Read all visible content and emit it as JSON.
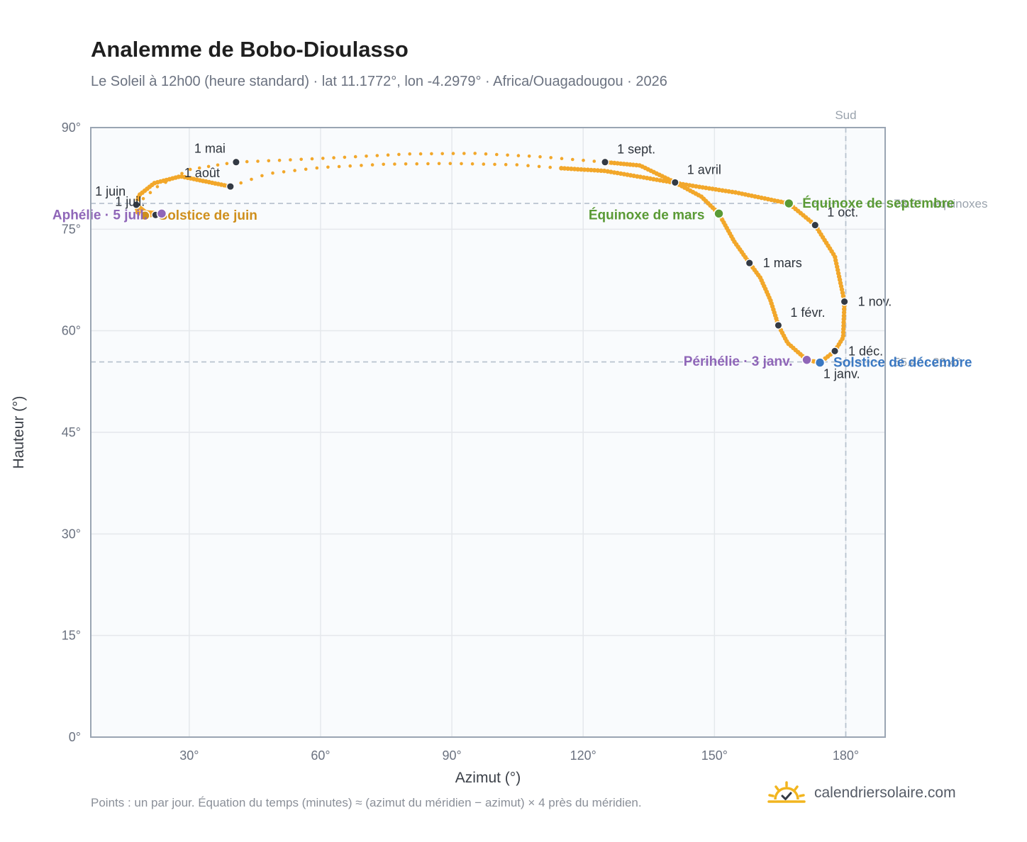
{
  "title": "Analemme de Bobo-Dioulasso",
  "subtitle": "Le Soleil à 12h00 (heure standard) · lat 11.1772°, lon -4.2979° · Africa/Ouagadougou · 2026",
  "footnote": "Points : un par jour. Équation du temps (minutes) ≈ (azimut du méridien − azimut) × 4 près du méridien.",
  "brand": {
    "name": "calendriersolaire.com",
    "icon": "sun-logo-icon"
  },
  "colors": {
    "curve": "#f2a72a",
    "month_marker": "#333a44",
    "equinox": "#5a9a35",
    "june_solstice": "#cf8f1c",
    "december_solstice": "#3a78c2",
    "apsis": "#8f66b8",
    "grid": "#e5e8ec",
    "reference_line": "#b9c3cf",
    "plot_background": "#f9fbfd",
    "frame": "#9aa5b3"
  },
  "chart_data": {
    "type": "scatter",
    "title": "Analemme de Bobo-Dioulasso",
    "xlabel": "Azimut (°)",
    "ylabel": "Hauteur (°)",
    "xlim": [
      7.5,
      189
    ],
    "ylim": [
      0,
      90
    ],
    "xticks": [
      {
        "value": 30,
        "label": "30°"
      },
      {
        "value": 60,
        "label": "60°"
      },
      {
        "value": 90,
        "label": "90°"
      },
      {
        "value": 120,
        "label": "120°"
      },
      {
        "value": 150,
        "label": "150°"
      },
      {
        "value": 180,
        "label": "180°"
      }
    ],
    "yticks": [
      {
        "value": 0,
        "label": "0°"
      },
      {
        "value": 15,
        "label": "15°"
      },
      {
        "value": 30,
        "label": "30°"
      },
      {
        "value": 45,
        "label": "45°"
      },
      {
        "value": 60,
        "label": "60°"
      },
      {
        "value": 75,
        "label": "75°"
      },
      {
        "value": 90,
        "label": "90°"
      }
    ],
    "grid": true,
    "south_line": {
      "azimuth": 180,
      "label": "Sud"
    },
    "reference_lines": [
      {
        "altitude": 78.8,
        "label": "78.8° · équinoxes"
      },
      {
        "altitude": 55.4,
        "label": "55.4° · 23.4°"
      }
    ],
    "series": [
      {
        "type": "daily_points",
        "segments": [
          {
            "points": [
              [
                174.1,
                55.3
              ],
              [
                171.1,
                55.7
              ],
              [
                166.7,
                58.2
              ],
              [
                164.6,
                60.8
              ],
              [
                162.8,
                64.5
              ],
              [
                160.5,
                67.8
              ],
              [
                158.0,
                70.0
              ],
              [
                154.5,
                73.2
              ],
              [
                151.0,
                77.3
              ],
              [
                147.0,
                79.8
              ],
              [
                141.0,
                81.9
              ],
              [
                133.0,
                84.4
              ],
              [
                125.0,
                84.9
              ]
            ],
            "count": 100,
            "dotted": false
          },
          {
            "points": [
              [
                125.0,
                84.9
              ],
              [
                110.0,
                85.7
              ],
              [
                95.0,
                86.2
              ],
              [
                80.0,
                86.1
              ],
              [
                65.0,
                85.6
              ],
              [
                52.0,
                85.2
              ],
              [
                40.7,
                84.9
              ]
            ],
            "count": 34,
            "dotted": true
          },
          {
            "points": [
              [
                40.7,
                84.9
              ],
              [
                30.0,
                83.8
              ],
              [
                22.5,
                81.2
              ],
              [
                17.9,
                78.6
              ]
            ],
            "count": 12,
            "dotted": true
          },
          {
            "points": [
              [
                17.9,
                78.6
              ],
              [
                20.0,
                77.5
              ],
              [
                23.7,
                77.3
              ]
            ],
            "count": 18,
            "dotted": false
          },
          {
            "points": [
              [
                23.7,
                77.3
              ],
              [
                22.3,
                77.1
              ],
              [
                19.9,
                77.0
              ],
              [
                18.2,
                77.5
              ],
              [
                17.9,
                78.6
              ],
              [
                18.5,
                80.0
              ],
              [
                22.0,
                81.8
              ],
              [
                28.0,
                82.8
              ],
              [
                39.4,
                81.3
              ]
            ],
            "count": 45,
            "dotted": false
          },
          {
            "points": [
              [
                39.4,
                81.3
              ],
              [
                48.0,
                83.2
              ],
              [
                60.0,
                84.1
              ],
              [
                75.0,
                84.6
              ],
              [
                90.0,
                84.7
              ],
              [
                105.0,
                84.5
              ],
              [
                115.0,
                84.0
              ]
            ],
            "count": 30,
            "dotted": true
          },
          {
            "points": [
              [
                115.0,
                84.0
              ],
              [
                125.0,
                83.6
              ],
              [
                135.0,
                82.5
              ],
              [
                145.0,
                81.4
              ],
              [
                155.0,
                80.4
              ],
              [
                167.0,
                78.8
              ],
              [
                173.0,
                75.6
              ],
              [
                177.5,
                71.0
              ],
              [
                179.7,
                64.3
              ],
              [
                179.4,
                59.0
              ],
              [
                177.5,
                57.0
              ],
              [
                174.5,
                55.5
              ],
              [
                174.1,
                55.3
              ]
            ],
            "count": 126,
            "dotted": false
          }
        ]
      }
    ],
    "month_markers": [
      {
        "label": "1 janv.",
        "azimuth": 174.4,
        "altitude": 55.3,
        "label_pos": "below-right"
      },
      {
        "label": "1 févr.",
        "azimuth": 164.6,
        "altitude": 60.8,
        "label_pos": "above-right"
      },
      {
        "label": "1 mars",
        "azimuth": 158.0,
        "altitude": 70.0,
        "label_pos": "right"
      },
      {
        "label": "1 avril",
        "azimuth": 141.0,
        "altitude": 81.9,
        "label_pos": "above-right"
      },
      {
        "label": "1 mai",
        "azimuth": 40.7,
        "altitude": 84.9,
        "label_pos": "above-left"
      },
      {
        "label": "1 juin",
        "azimuth": 17.9,
        "altitude": 78.6,
        "label_pos": "above-left"
      },
      {
        "label": "1 juil.",
        "azimuth": 22.3,
        "altitude": 77.1,
        "label_pos": "above-left"
      },
      {
        "label": "1 août",
        "azimuth": 39.4,
        "altitude": 81.3,
        "label_pos": "above-left"
      },
      {
        "label": "1 sept.",
        "azimuth": 125.0,
        "altitude": 84.9,
        "label_pos": "above-right"
      },
      {
        "label": "1 oct.",
        "azimuth": 173.0,
        "altitude": 75.6,
        "label_pos": "above-right"
      },
      {
        "label": "1 nov.",
        "azimuth": 179.7,
        "altitude": 64.3,
        "label_pos": "right"
      },
      {
        "label": "1 déc.",
        "azimuth": 177.5,
        "altitude": 57.0,
        "label_pos": "right"
      }
    ],
    "key_events": [
      {
        "label": "Équinoxe de mars",
        "azimuth": 151.0,
        "altitude": 77.3,
        "color_key": "equinox",
        "label_pos": "left"
      },
      {
        "label": "Équinoxe de septembre",
        "azimuth": 167.0,
        "altitude": 78.8,
        "color_key": "equinox",
        "label_pos": "right"
      },
      {
        "label": "Solstice de juin",
        "azimuth": 19.9,
        "altitude": 77.0,
        "color_key": "june_solstice",
        "label_pos": "right"
      },
      {
        "label": "Solstice de décembre",
        "azimuth": 174.1,
        "altitude": 55.3,
        "color_key": "december_solstice",
        "label_pos": "right"
      },
      {
        "label": "Aphélie · 5 juil.",
        "azimuth": 23.7,
        "altitude": 77.3,
        "color_key": "apsis",
        "label_pos": "left"
      },
      {
        "label": "Périhélie · 3 janv.",
        "azimuth": 171.1,
        "altitude": 55.7,
        "color_key": "apsis",
        "label_pos": "left"
      }
    ]
  }
}
